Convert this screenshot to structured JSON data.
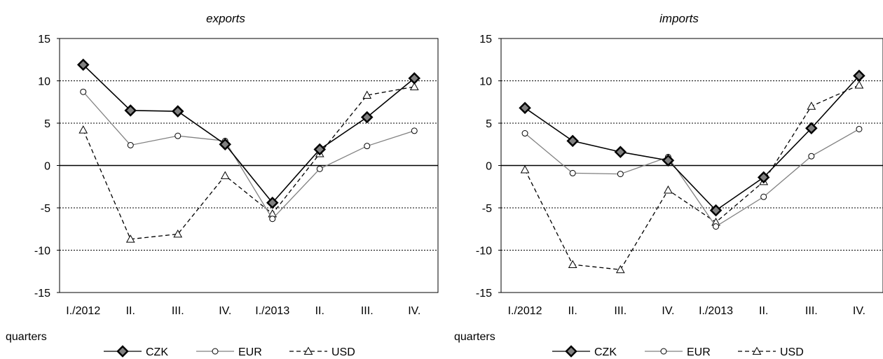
{
  "chart_data": [
    {
      "type": "line",
      "title": "exports",
      "xlabel": "quarters",
      "ylabel": "",
      "categories": [
        "I./2012",
        "II.",
        "III.",
        "IV.",
        "I./2013",
        "II.",
        "III.",
        "IV."
      ],
      "ylim": [
        -15,
        15
      ],
      "yticks": [
        "15",
        "10",
        "5",
        "0",
        "-5",
        "-10",
        "-15"
      ],
      "grid": "horizontal dotted",
      "legend_position": "bottom",
      "series": [
        {
          "name": "CZK",
          "values": [
            11.9,
            6.5,
            6.4,
            2.5,
            -4.4,
            1.9,
            5.7,
            10.3
          ],
          "color": "#000000",
          "marker": "diamond",
          "line": "solid"
        },
        {
          "name": "EUR",
          "values": [
            8.7,
            2.4,
            3.5,
            2.9,
            -6.3,
            -0.4,
            2.3,
            4.1
          ],
          "color": "#808080",
          "marker": "circle",
          "line": "solid"
        },
        {
          "name": "USD",
          "values": [
            4.2,
            -8.7,
            -8.1,
            -1.2,
            -5.7,
            1.4,
            8.3,
            9.3
          ],
          "color": "#000000",
          "marker": "triangle",
          "line": "dashed"
        }
      ]
    },
    {
      "type": "line",
      "title": "imports",
      "xlabel": "quarters",
      "ylabel": "",
      "categories": [
        "I./2012",
        "II.",
        "III.",
        "IV.",
        "I./2013",
        "II.",
        "III.",
        "IV."
      ],
      "ylim": [
        -15,
        15
      ],
      "yticks": [
        "15",
        "10",
        "5",
        "0",
        "-5",
        "-10",
        "-15"
      ],
      "grid": "horizontal dotted",
      "legend_position": "bottom",
      "series": [
        {
          "name": "CZK",
          "values": [
            6.8,
            2.9,
            1.6,
            0.6,
            -5.3,
            -1.4,
            4.4,
            10.6
          ],
          "color": "#000000",
          "marker": "diamond",
          "line": "solid"
        },
        {
          "name": "EUR",
          "values": [
            3.8,
            -0.9,
            -1.0,
            1.0,
            -7.2,
            -3.7,
            1.1,
            4.3
          ],
          "color": "#808080",
          "marker": "circle",
          "line": "solid"
        },
        {
          "name": "USD",
          "values": [
            -0.5,
            -11.7,
            -12.3,
            -2.9,
            -6.7,
            -1.9,
            7.0,
            9.5
          ],
          "color": "#000000",
          "marker": "triangle",
          "line": "dashed"
        }
      ]
    }
  ]
}
